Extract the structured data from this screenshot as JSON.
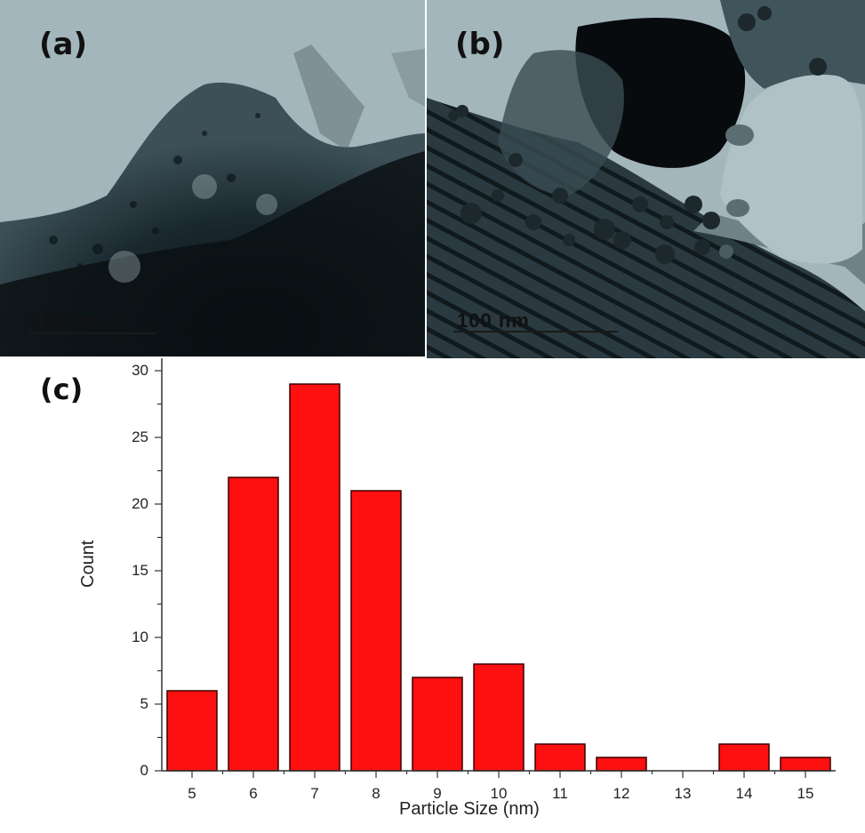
{
  "panels": {
    "a": {
      "label": "(a)",
      "scale_bar": "200 nm"
    },
    "b": {
      "label": "(b)",
      "scale_bar": "100 nm"
    },
    "c": {
      "label": "(c)"
    }
  },
  "colors": {
    "bar_fill": "#ff1010",
    "bar_edge": "#3a0000",
    "axis": "#333333",
    "tem_bg": "#9fb3b8"
  },
  "chart_data": {
    "type": "bar",
    "title": "",
    "xlabel": "Particle Size (nm)",
    "ylabel": "Count",
    "categories": [
      "5",
      "6",
      "7",
      "8",
      "9",
      "10",
      "11",
      "12",
      "13",
      "14",
      "15"
    ],
    "values": [
      6,
      22,
      29,
      21,
      7,
      8,
      2,
      1,
      0,
      2,
      1
    ],
    "ylim": [
      0,
      31
    ],
    "yticks": [
      0,
      5,
      10,
      15,
      20,
      25,
      30
    ],
    "grid": false,
    "legend": null
  }
}
